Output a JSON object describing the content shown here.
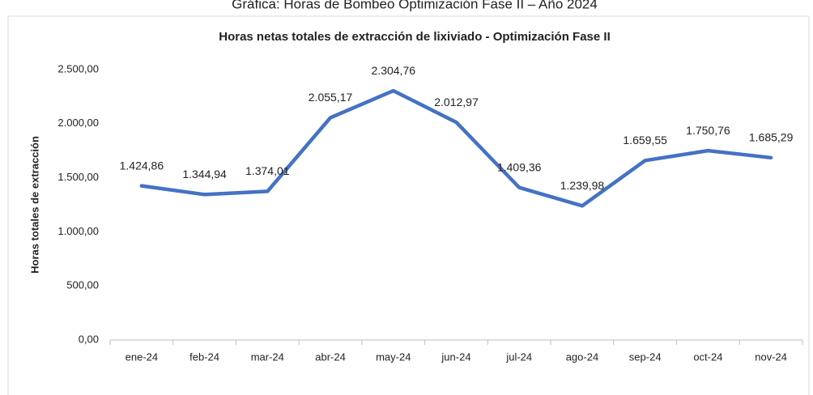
{
  "caption": "Gráfica: Horas de Bombeo Optimización Fase II – Año 2024",
  "chart_data": {
    "type": "line",
    "title": "Horas netas totales de extracción de lixiviado - Optimización Fase II",
    "y_label": "Horas totales de extracción",
    "categories": [
      "ene-24",
      "feb-24",
      "mar-24",
      "abr-24",
      "may-24",
      "jun-24",
      "jul-24",
      "ago-24",
      "sep-24",
      "oct-24",
      "nov-24"
    ],
    "series": [
      {
        "name": "Horas netas totales",
        "color": "#4472c4",
        "values": [
          1424.86,
          1344.94,
          1374.01,
          2055.17,
          2304.76,
          2012.97,
          1409.36,
          1239.98,
          1659.55,
          1750.76,
          1685.29
        ],
        "value_labels": [
          "1.424,86",
          "1.344,94",
          "1.374,01",
          "2.055,17",
          "2.304,76",
          "2.012,97",
          "1.409,36",
          "1.239,98",
          "1.659,55",
          "1.750,76",
          "1.685,29"
        ]
      }
    ],
    "ylim": [
      0,
      2500
    ],
    "yticks": [
      {
        "value": 0,
        "label": "0,00"
      },
      {
        "value": 500,
        "label": "500,00"
      },
      {
        "value": 1000,
        "label": "1.000,00"
      },
      {
        "value": 1500,
        "label": "1.500,00"
      },
      {
        "value": 2000,
        "label": "2.000,00"
      },
      {
        "value": 2500,
        "label": "2.500,00"
      }
    ],
    "grid": false
  }
}
